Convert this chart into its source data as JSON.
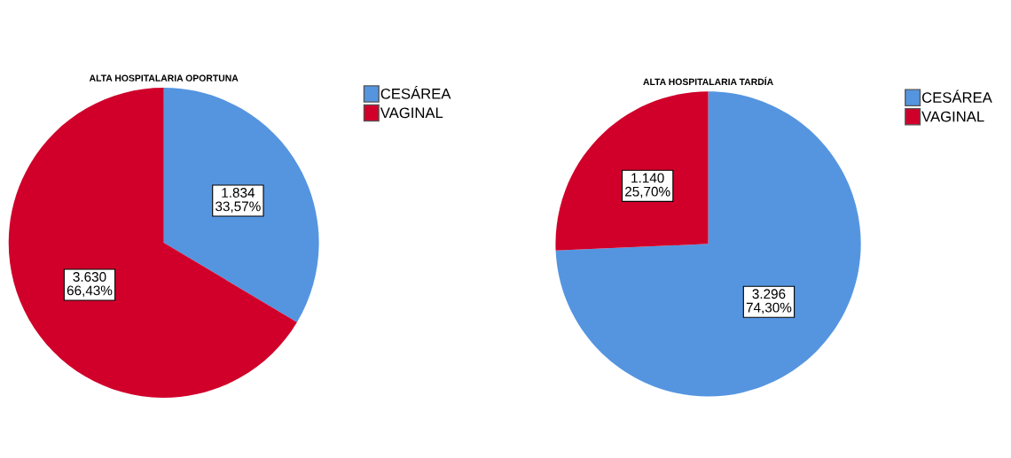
{
  "chart_data": [
    {
      "type": "pie",
      "title": "ALTA HOSPITALARIA OPORTUNA",
      "categories": [
        "CESÁREA",
        "VAGINAL"
      ],
      "values": [
        1834,
        3630
      ],
      "colors": [
        "#5595e0",
        "#d0002a"
      ],
      "value_labels": [
        "1.834\n33,57%",
        "3.630\n66,43%"
      ],
      "legend": "top right"
    },
    {
      "type": "pie",
      "title": "ALTA HOSPITALARIA TARDÍA",
      "categories": [
        "CESÁREA",
        "VAGINAL"
      ],
      "values": [
        3296,
        1140
      ],
      "colors": [
        "#5595e0",
        "#d0002a"
      ],
      "value_labels": [
        "3.296\n74,30%",
        "1.140\n25,70%"
      ],
      "legend": "top right"
    }
  ]
}
